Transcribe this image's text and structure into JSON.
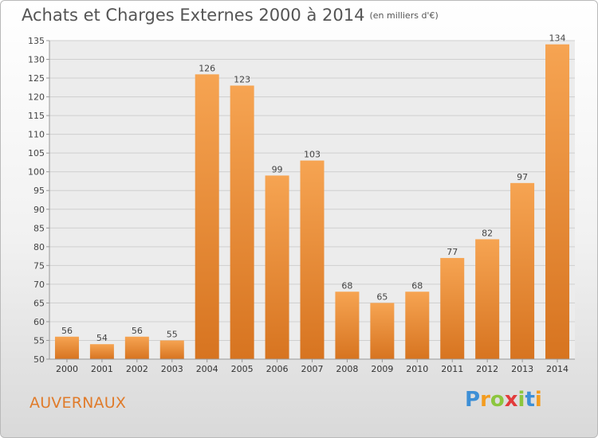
{
  "chart_data": {
    "type": "bar",
    "title": "Achats et Charges Externes 2000 à 2014",
    "subtitle": "(en milliers d'€)",
    "categories": [
      "2000",
      "2001",
      "2002",
      "2003",
      "2004",
      "2005",
      "2006",
      "2007",
      "2008",
      "2009",
      "2010",
      "2011",
      "2012",
      "2013",
      "2014"
    ],
    "values": [
      56,
      54,
      56,
      55,
      126,
      123,
      99,
      103,
      68,
      65,
      68,
      77,
      82,
      97,
      134
    ],
    "ylim": [
      50,
      135
    ],
    "yticks": [
      50,
      55,
      60,
      65,
      70,
      75,
      80,
      85,
      90,
      95,
      100,
      105,
      110,
      115,
      120,
      125,
      130,
      135
    ],
    "grid": true,
    "bar_color": "#f0953a"
  },
  "place_name": "AUVERNAUX",
  "logo": {
    "letters": [
      "P",
      "r",
      "o",
      "x",
      "i",
      "t",
      "i"
    ],
    "colors": [
      "#3d8fd6",
      "#f39c1f",
      "#8cc63e",
      "#e23b3b",
      "#8cc63e",
      "#3d8fd6",
      "#f39c1f"
    ]
  }
}
